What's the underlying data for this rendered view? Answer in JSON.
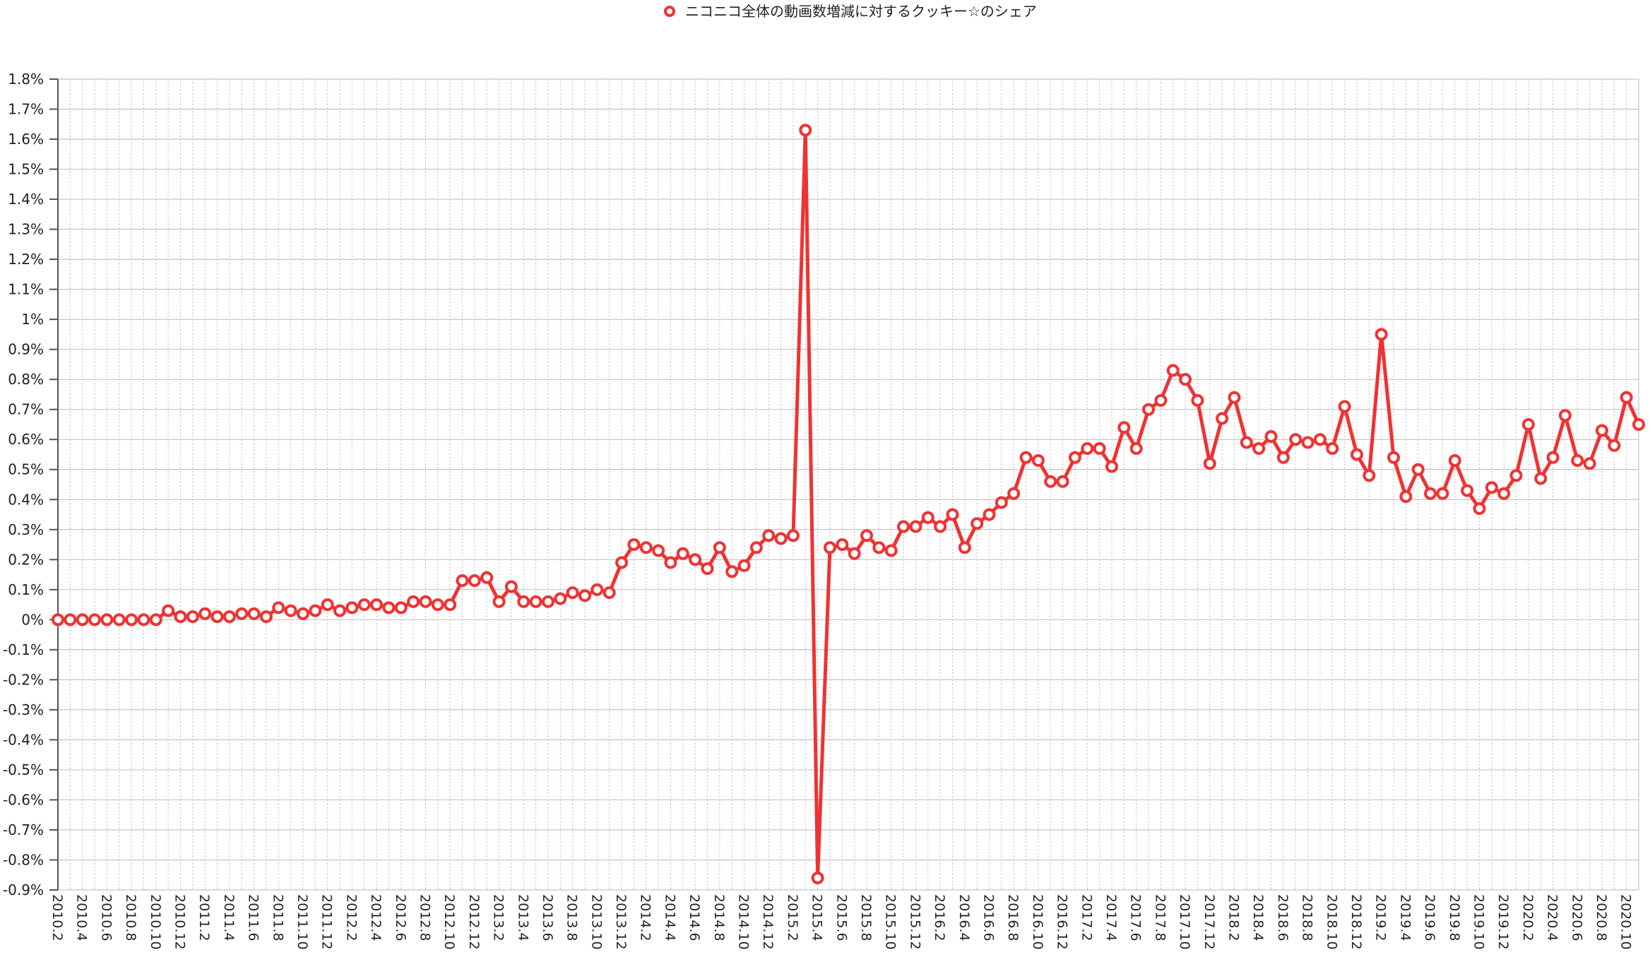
{
  "chart_data": {
    "type": "line",
    "legend": {
      "position": "top-center"
    },
    "grid": true,
    "ylim": [
      -0.9,
      1.8
    ],
    "yticks": [
      "1.8%",
      "1.7%",
      "1.6%",
      "1.5%",
      "1.4%",
      "1.3%",
      "1.2%",
      "1.1%",
      "1%",
      "0.9%",
      "0.8%",
      "0.7%",
      "0.6%",
      "0.5%",
      "0.4%",
      "0.3%",
      "0.2%",
      "0.1%",
      "0%",
      "-0.1%",
      "-0.2%",
      "-0.3%",
      "-0.4%",
      "-0.5%",
      "-0.6%",
      "-0.7%",
      "-0.8%",
      "-0.9%"
    ],
    "color": "#f03232",
    "series": [
      {
        "name": "ニコニコ全体の動画数増減に対するクッキー☆のシェア",
        "x": [
          "2010.2",
          "2010.3",
          "2010.4",
          "2010.5",
          "2010.6",
          "2010.7",
          "2010.8",
          "2010.9",
          "2010.10",
          "2010.11",
          "2010.12",
          "2011.1",
          "2011.2",
          "2011.3",
          "2011.4",
          "2011.5",
          "2011.6",
          "2011.7",
          "2011.8",
          "2011.9",
          "2011.10",
          "2011.11",
          "2011.12",
          "2012.1",
          "2012.2",
          "2012.3",
          "2012.4",
          "2012.5",
          "2012.6",
          "2012.7",
          "2012.8",
          "2012.9",
          "2012.10",
          "2012.11",
          "2012.12",
          "2013.1",
          "2013.2",
          "2013.3",
          "2013.4",
          "2013.5",
          "2013.6",
          "2013.7",
          "2013.8",
          "2013.9",
          "2013.10",
          "2013.11",
          "2013.12",
          "2014.1",
          "2014.2",
          "2014.3",
          "2014.4",
          "2014.5",
          "2014.6",
          "2014.7",
          "2014.8",
          "2014.9",
          "2014.10",
          "2014.11",
          "2014.12",
          "2015.1",
          "2015.2",
          "2015.3",
          "2015.4",
          "2015.5",
          "2015.6",
          "2015.7",
          "2015.8",
          "2015.9",
          "2015.10",
          "2015.11",
          "2015.12",
          "2016.1",
          "2016.2",
          "2016.3",
          "2016.4",
          "2016.5",
          "2016.6",
          "2016.7",
          "2016.8",
          "2016.9",
          "2016.10",
          "2016.11",
          "2016.12",
          "2017.1",
          "2017.2",
          "2017.3",
          "2017.4",
          "2017.5",
          "2017.6",
          "2017.7",
          "2017.8",
          "2017.9",
          "2017.10",
          "2017.11",
          "2017.12",
          "2018.1",
          "2018.2",
          "2018.3",
          "2018.4",
          "2018.5",
          "2018.6",
          "2018.7",
          "2018.8",
          "2018.9",
          "2018.10",
          "2018.11",
          "2018.12",
          "2019.1",
          "2019.2",
          "2019.3",
          "2019.4",
          "2019.5",
          "2019.6",
          "2019.7",
          "2019.8",
          "2019.9",
          "2019.10",
          "2019.11",
          "2019.12",
          "2020.1",
          "2020.2",
          "2020.3",
          "2020.4",
          "2020.5",
          "2020.6",
          "2020.7",
          "2020.8",
          "2020.9",
          "2020.10",
          "2020.11"
        ],
        "values": [
          0.0,
          0.0,
          0.0,
          0.0,
          0.0,
          0.0,
          0.0,
          0.0,
          0.0,
          0.03,
          0.01,
          0.01,
          0.02,
          0.01,
          0.01,
          0.02,
          0.02,
          0.01,
          0.04,
          0.03,
          0.02,
          0.03,
          0.05,
          0.03,
          0.04,
          0.05,
          0.05,
          0.04,
          0.04,
          0.06,
          0.06,
          0.05,
          0.05,
          0.13,
          0.13,
          0.14,
          0.06,
          0.11,
          0.06,
          0.06,
          0.06,
          0.07,
          0.09,
          0.08,
          0.1,
          0.09,
          0.19,
          0.25,
          0.24,
          0.23,
          0.19,
          0.22,
          0.2,
          0.17,
          0.24,
          0.16,
          0.18,
          0.24,
          0.28,
          0.27,
          0.28,
          1.63,
          -0.86,
          0.24,
          0.25,
          0.22,
          0.28,
          0.24,
          0.23,
          0.31,
          0.31,
          0.34,
          0.31,
          0.35,
          0.24,
          0.32,
          0.35,
          0.39,
          0.42,
          0.54,
          0.53,
          0.46,
          0.46,
          0.54,
          0.57,
          0.57,
          0.51,
          0.64,
          0.57,
          0.7,
          0.73,
          0.83,
          0.8,
          0.73,
          0.52,
          0.67,
          0.74,
          0.59,
          0.57,
          0.61,
          0.54,
          0.6,
          0.59,
          0.6,
          0.57,
          0.71,
          0.55,
          0.48,
          0.95,
          0.54,
          0.41,
          0.5,
          0.42,
          0.42,
          0.53,
          0.43,
          0.37,
          0.44,
          0.42,
          0.48,
          0.65,
          0.47,
          0.54,
          0.68,
          0.53,
          0.52,
          0.63,
          0.58,
          0.74,
          0.65
        ]
      }
    ]
  }
}
